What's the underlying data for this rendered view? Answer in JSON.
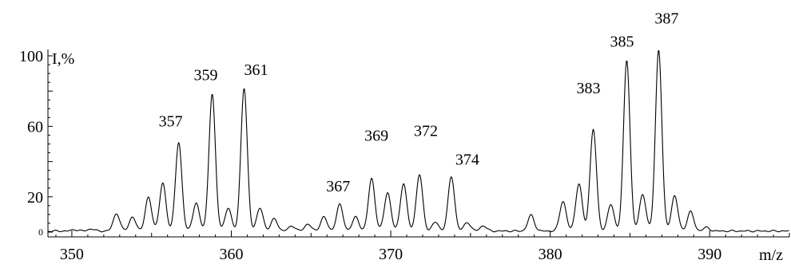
{
  "chart_data": {
    "type": "line",
    "title": "",
    "xlabel": "m/z",
    "ylabel": "I,%",
    "xlim": [
      348.5,
      395
    ],
    "ylim": [
      0,
      100
    ],
    "x_ticks": [
      350,
      360,
      370,
      380,
      390
    ],
    "y_ticks": [
      {
        "value": 0,
        "label": "0"
      },
      {
        "value": 20,
        "label": "20"
      },
      {
        "value": 60,
        "label": "60"
      },
      {
        "value": 100,
        "label": "100"
      }
    ],
    "grid": false,
    "legend": "none",
    "peaks": [
      {
        "x": 350.2,
        "y": 0.8
      },
      {
        "x": 351.2,
        "y": 1.2
      },
      {
        "x": 352.8,
        "y": 10
      },
      {
        "x": 353.8,
        "y": 8
      },
      {
        "x": 354.8,
        "y": 19
      },
      {
        "x": 355.7,
        "y": 27
      },
      {
        "x": 356.7,
        "y": 50
      },
      {
        "x": 357.8,
        "y": 16
      },
      {
        "x": 358.8,
        "y": 78
      },
      {
        "x": 359.8,
        "y": 13
      },
      {
        "x": 360.8,
        "y": 81
      },
      {
        "x": 361.8,
        "y": 13
      },
      {
        "x": 362.7,
        "y": 7
      },
      {
        "x": 363.8,
        "y": 3
      },
      {
        "x": 364.8,
        "y": 4
      },
      {
        "x": 365.8,
        "y": 8
      },
      {
        "x": 366.8,
        "y": 15
      },
      {
        "x": 367.8,
        "y": 8
      },
      {
        "x": 368.8,
        "y": 30
      },
      {
        "x": 369.8,
        "y": 22
      },
      {
        "x": 370.8,
        "y": 27
      },
      {
        "x": 371.8,
        "y": 32
      },
      {
        "x": 372.8,
        "y": 5
      },
      {
        "x": 373.8,
        "y": 31
      },
      {
        "x": 374.8,
        "y": 5
      },
      {
        "x": 375.8,
        "y": 3
      },
      {
        "x": 378.8,
        "y": 9
      },
      {
        "x": 380.8,
        "y": 17
      },
      {
        "x": 381.8,
        "y": 27
      },
      {
        "x": 382.7,
        "y": 58
      },
      {
        "x": 383.8,
        "y": 15
      },
      {
        "x": 384.8,
        "y": 97
      },
      {
        "x": 385.8,
        "y": 21
      },
      {
        "x": 386.8,
        "y": 103
      },
      {
        "x": 387.8,
        "y": 20
      },
      {
        "x": 388.8,
        "y": 11
      },
      {
        "x": 389.8,
        "y": 2
      }
    ],
    "annotations": [
      {
        "text": "357",
        "x": 356.7,
        "y": 50
      },
      {
        "text": "359",
        "x": 358.8,
        "y": 78
      },
      {
        "text": "361",
        "x": 360.8,
        "y": 81
      },
      {
        "text": "367",
        "x": 366.8,
        "y": 15
      },
      {
        "text": "369",
        "x": 368.8,
        "y": 30
      },
      {
        "text": "372",
        "x": 371.8,
        "y": 32
      },
      {
        "text": "374",
        "x": 373.8,
        "y": 31
      },
      {
        "text": "383",
        "x": 382.7,
        "y": 58
      },
      {
        "text": "385",
        "x": 384.8,
        "y": 97
      },
      {
        "text": "387",
        "x": 386.8,
        "y": 103
      }
    ]
  }
}
